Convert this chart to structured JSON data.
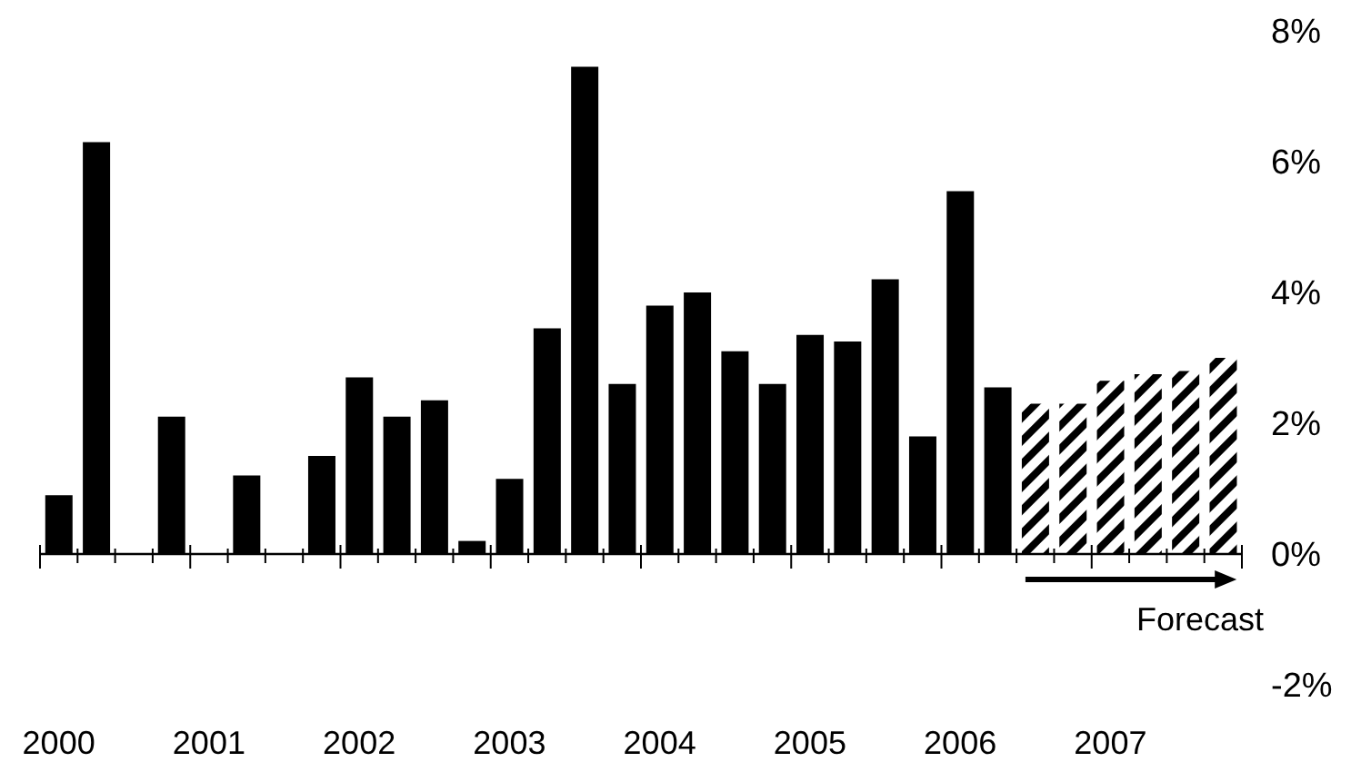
{
  "chart_data": {
    "type": "bar",
    "categories": [
      "2000",
      null,
      null,
      null,
      "2001",
      null,
      null,
      null,
      "2002",
      null,
      null,
      null,
      "2003",
      null,
      null,
      null,
      "2004",
      null,
      null,
      null,
      "2005",
      null,
      null,
      null,
      "2006",
      null,
      null,
      null,
      "2007",
      null,
      null,
      null
    ],
    "series": [
      {
        "color": "#000000",
        "values": [
          0.9,
          6.3,
          null,
          2.1,
          null,
          1.2,
          null,
          1.5,
          2.7,
          2.1,
          2.35,
          0.2,
          1.15,
          3.45,
          7.45,
          2.6,
          3.8,
          4.0,
          3.1,
          2.6,
          3.35,
          3.25,
          4.2,
          1.8,
          5.55,
          2.55,
          null,
          null,
          null,
          null,
          null,
          null
        ]
      },
      {
        "color": "#000000",
        "values": [
          null,
          null,
          null,
          null,
          null,
          null,
          null,
          null,
          null,
          null,
          null,
          null,
          null,
          null,
          null,
          null,
          null,
          null,
          null,
          null,
          null,
          null,
          null,
          null,
          null,
          null,
          2.3,
          2.3,
          2.65,
          2.75,
          2.8,
          3.0
        ]
      }
    ],
    "ylim": [
      -2,
      8
    ],
    "yticks": [
      {
        "value": -2,
        "label": "-2%"
      },
      {
        "value": 0,
        "label": "0%"
      },
      {
        "value": 2,
        "label": "2%"
      },
      {
        "value": 4,
        "label": "4%"
      },
      {
        "value": 6,
        "label": "6%"
      },
      {
        "value": 8,
        "label": "8%"
      }
    ],
    "annotations": [
      "Forecast"
    ]
  }
}
